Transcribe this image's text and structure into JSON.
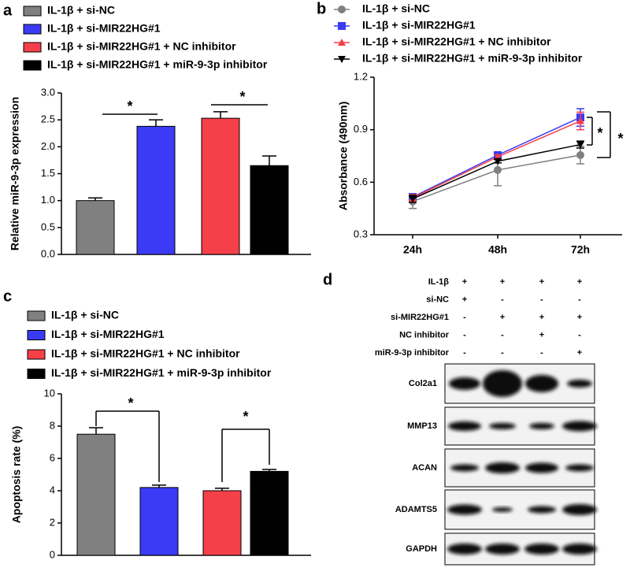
{
  "chart_data": [
    {
      "type": "bar",
      "panel_label": "a",
      "ylabel": "Relative miR-9-3p expression",
      "series": [
        {
          "name": "IL-1β + si-NC",
          "color": "#808080",
          "values": [
            1.0
          ],
          "errors": [
            0.05
          ]
        },
        {
          "name": "IL-1β + si-MIR22HG#1",
          "color": "#3b3bf5",
          "values": [
            2.38
          ],
          "errors": [
            0.12
          ]
        },
        {
          "name": "IL-1β + si-MIR22HG#1 + NC inhibitor",
          "color": "#f5404a",
          "values": [
            2.53
          ],
          "errors": [
            0.12
          ]
        },
        {
          "name": "IL-1β + si-MIR22HG#1 + miR-9-3p inhibitor",
          "color": "#000000",
          "values": [
            1.65
          ],
          "errors": [
            0.18
          ]
        }
      ],
      "ylim": [
        0,
        3.0
      ],
      "yticks": [
        {
          "value": 0,
          "label": "0.0"
        },
        {
          "value": 0.5,
          "label": "0.5"
        },
        {
          "value": 1.0,
          "label": "1.0"
        },
        {
          "value": 1.5,
          "label": "1.5"
        },
        {
          "value": 2.0,
          "label": "2.0"
        },
        {
          "value": 2.5,
          "label": "2.5"
        },
        {
          "value": 3.0,
          "label": "3.0"
        }
      ],
      "annotations": [
        "*",
        "*"
      ]
    },
    {
      "type": "line",
      "panel_label": "b",
      "ylabel": "Absorbance (490nm)",
      "categories": [
        "24h",
        "48h",
        "72h"
      ],
      "series": [
        {
          "name": "IL-1β + si-NC",
          "color": "#808080",
          "marker": "circle",
          "values": [
            0.49,
            0.67,
            0.755
          ],
          "errors": [
            0.04,
            0.09,
            0.05
          ]
        },
        {
          "name": "IL-1β + si-MIR22HG#1",
          "color": "#3b3bf5",
          "marker": "square",
          "values": [
            0.515,
            0.755,
            0.97
          ],
          "errors": [
            0.02,
            0.01,
            0.05
          ]
        },
        {
          "name": "IL-1β + si-MIR22HG#1 + NC inhibitor",
          "color": "#f5404a",
          "marker": "triangle",
          "values": [
            0.51,
            0.745,
            0.95
          ],
          "errors": [
            0.02,
            0.01,
            0.05
          ]
        },
        {
          "name": "IL-1β + si-MIR22HG#1 + miR-9-3p inhibitor",
          "color": "#000000",
          "marker": "triangle-down",
          "values": [
            0.505,
            0.72,
            0.815
          ],
          "errors": [
            0.02,
            0.01,
            0.02
          ]
        }
      ],
      "ylim": [
        0.3,
        1.2
      ],
      "yticks": [
        0.3,
        0.6,
        0.9,
        1.2
      ],
      "annotations": [
        "*",
        "*"
      ]
    },
    {
      "type": "bar",
      "panel_label": "c",
      "ylabel": "Apoptosis rate (%)",
      "series": [
        {
          "name": "IL-1β + si-NC",
          "color": "#808080",
          "values": [
            7.5
          ],
          "errors": [
            0.4
          ]
        },
        {
          "name": "IL-1β + si-MIR22HG#1",
          "color": "#3b3bf5",
          "values": [
            4.2
          ],
          "errors": [
            0.15
          ]
        },
        {
          "name": "IL-1β + si-MIR22HG#1 + NC inhibitor",
          "color": "#f5404a",
          "values": [
            4.0
          ],
          "errors": [
            0.15
          ]
        },
        {
          "name": "IL-1β + si-MIR22HG#1 + miR-9-3p inhibitor",
          "color": "#000000",
          "values": [
            5.2
          ],
          "errors": [
            0.12
          ]
        }
      ],
      "ylim": [
        0,
        10
      ],
      "yticks": [
        0,
        2,
        4,
        6,
        8,
        10
      ],
      "annotations": [
        "*",
        "*"
      ]
    }
  ],
  "blot": {
    "panel_label": "d",
    "conditions": [
      {
        "label": "IL-1β",
        "signs": [
          "+",
          "+",
          "+",
          "+"
        ]
      },
      {
        "label": "si-NC",
        "signs": [
          "+",
          "-",
          "-",
          "-"
        ]
      },
      {
        "label": "si-MIR22HG#1",
        "signs": [
          "-",
          "+",
          "+",
          "+"
        ]
      },
      {
        "label": "NC inhibitor",
        "signs": [
          "-",
          "-",
          "+",
          "-"
        ]
      },
      {
        "label": "miR-9-3p inhibitor",
        "signs": [
          "-",
          "-",
          "-",
          "+"
        ]
      }
    ],
    "bands": [
      "Col2a1",
      "MMP13",
      "ACAN",
      "ADAMTS5",
      "GAPDH"
    ]
  }
}
